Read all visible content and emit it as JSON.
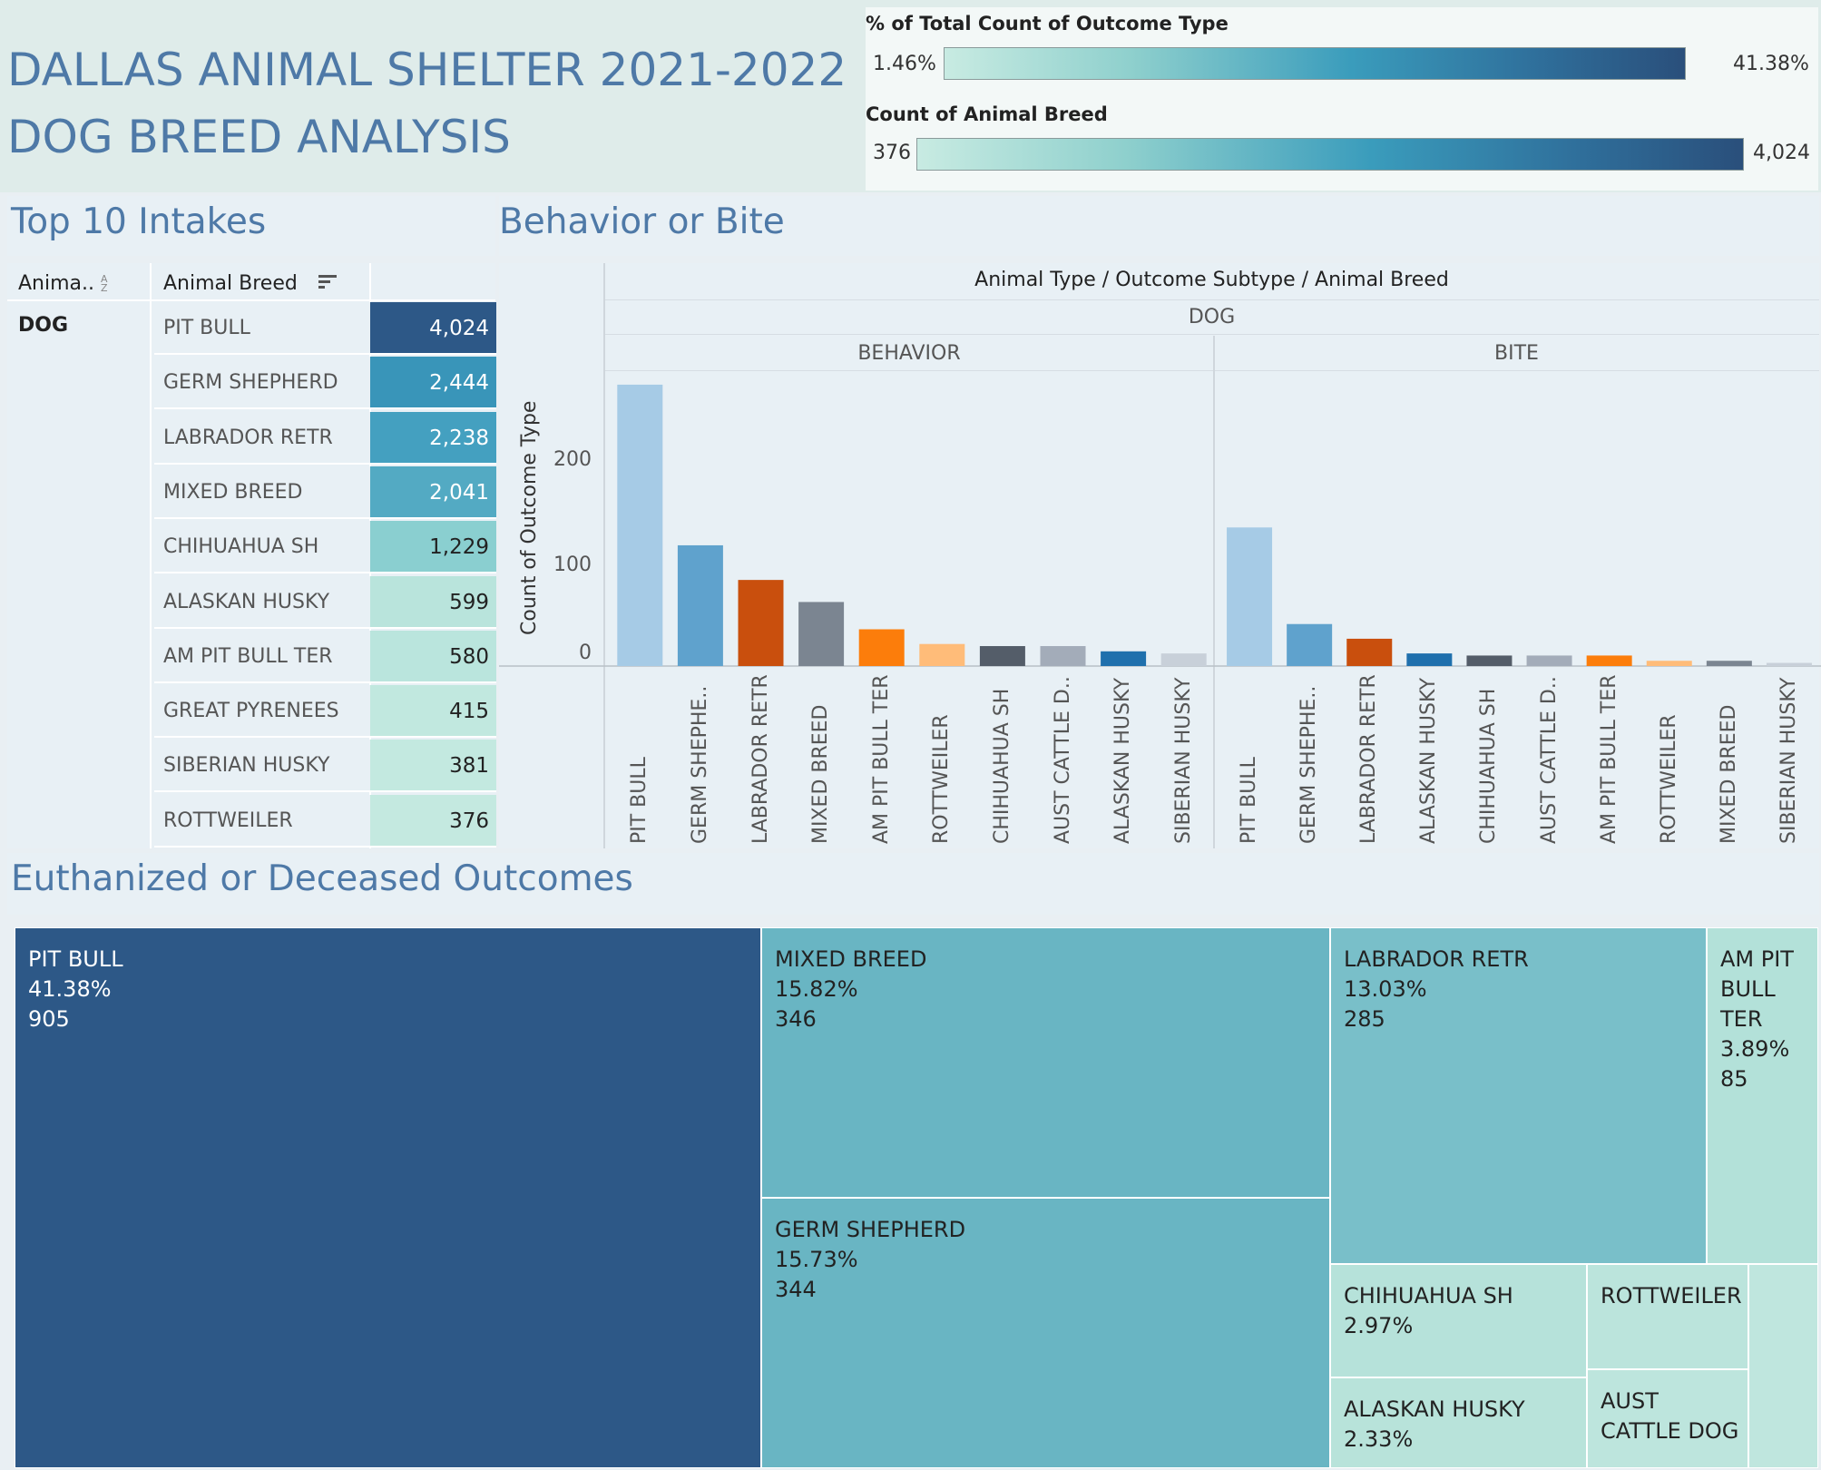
{
  "title": {
    "line1": "DALLAS ANIMAL SHELTER 2021-2022",
    "line2": "DOG BREED ANALYSIS"
  },
  "legends": {
    "pct": {
      "title": "% of Total Count of Outcome Type",
      "min": "1.46%",
      "max": "41.38%"
    },
    "count": {
      "title": "Count of Animal Breed",
      "min": "376",
      "max": "4,024"
    }
  },
  "intakes": {
    "title": "Top 10 Intakes",
    "col_animal": "Anima..",
    "col_breed": "Animal Breed",
    "animal_type": "DOG",
    "rows": [
      {
        "breed": "PIT BULL",
        "value": "4,024",
        "color": "#2d5887"
      },
      {
        "breed": "GERM SHEPHERD",
        "value": "2,444",
        "color": "#3995b9"
      },
      {
        "breed": "LABRADOR RETR",
        "value": "2,238",
        "color": "#44a0c0"
      },
      {
        "breed": "MIXED BREED",
        "value": "2,041",
        "color": "#53aac3"
      },
      {
        "breed": "CHIHUAHUA SH",
        "value": "1,229",
        "color": "#8acfd0"
      },
      {
        "breed": "ALASKAN HUSKY",
        "value": "599",
        "color": "#b9e4dc"
      },
      {
        "breed": "AM PIT BULL TER",
        "value": "580",
        "color": "#bae5dd"
      },
      {
        "breed": "GREAT PYRENEES",
        "value": "415",
        "color": "#c1e8df"
      },
      {
        "breed": "SIBERIAN HUSKY",
        "value": "381",
        "color": "#c3e9e0"
      },
      {
        "breed": "ROTTWEILER",
        "value": "376",
        "color": "#c4e9e0"
      }
    ]
  },
  "behavior": {
    "title": "Behavior or Bite",
    "header": "Animal Type  /  Outcome Subtype  /  Animal Breed",
    "animal_type": "DOG",
    "subtypes": [
      "BEHAVIOR",
      "BITE"
    ],
    "ylabel": "Count of Outcome Type",
    "ticks": [
      "0",
      "100",
      "200"
    ]
  },
  "chart_data": {
    "type": "bar",
    "title": "Behavior or Bite",
    "ylabel": "Count of Outcome Type",
    "ylim": [
      0,
      280
    ],
    "series": [
      {
        "name": "BEHAVIOR",
        "categories": [
          "PIT BULL",
          "GERM SHEPHE..",
          "LABRADOR RETR",
          "MIXED BREED",
          "AM PIT BULL TER",
          "ROTTWEILER",
          "CHIHUAHUA SH",
          "AUST CATTLE D..",
          "ALASKAN HUSKY",
          "SIBERIAN HUSKY"
        ],
        "values": [
          268,
          115,
          82,
          61,
          35,
          21,
          19,
          19,
          14,
          12
        ],
        "colors": [
          "#a6cbe6",
          "#5fa2cd",
          "#c94f0d",
          "#7b8591",
          "#fc7d0b",
          "#ffbc79",
          "#545d69",
          "#a3acb9",
          "#1f70ad",
          "#c8d0d9"
        ]
      },
      {
        "name": "BITE",
        "categories": [
          "PIT BULL",
          "GERM SHEPHE..",
          "LABRADOR RETR",
          "ALASKAN HUSKY",
          "CHIHUAHUA SH",
          "AUST CATTLE D..",
          "AM PIT BULL TER",
          "ROTTWEILER",
          "MIXED BREED",
          "SIBERIAN HUSKY"
        ],
        "values": [
          132,
          40,
          26,
          12,
          10,
          10,
          10,
          5,
          5,
          3
        ],
        "colors": [
          "#a6cbe6",
          "#5fa2cd",
          "#c94f0d",
          "#1f70ad",
          "#545d69",
          "#a3acb9",
          "#fc7d0b",
          "#ffbc79",
          "#7b8591",
          "#c8d0d9"
        ]
      }
    ]
  },
  "euthanized": {
    "title": "Euthanized or Deceased Outcomes",
    "items": [
      {
        "breed": "PIT BULL",
        "pct": "41.38%",
        "count": "905",
        "color": "#2d5887"
      },
      {
        "breed": "MIXED BREED",
        "pct": "15.82%",
        "count": "346",
        "color": "#69b5c3"
      },
      {
        "breed": "GERM SHEPHERD",
        "pct": "15.73%",
        "count": "344",
        "color": "#69b5c3"
      },
      {
        "breed": "LABRADOR RETR",
        "pct": "13.03%",
        "count": "285",
        "color": "#79bfc9"
      },
      {
        "breed": "AM PIT BULL TER",
        "breed_lines": [
          "AM PIT",
          "BULL",
          "TER"
        ],
        "pct": "3.89%",
        "count": "85",
        "color": "#b3e1d9"
      },
      {
        "breed": "CHIHUAHUA SH",
        "pct": "2.97%",
        "color": "#b6e2da"
      },
      {
        "breed": "ALASKAN HUSKY",
        "pct": "2.33%",
        "color": "#b8e3da"
      },
      {
        "breed": "ROTTWEILER",
        "color": "#bbe4dc"
      },
      {
        "breed": "AUST CATTLE DOG",
        "breed_lines": [
          "AUST",
          "CATTLE DOG"
        ],
        "color": "#bde5dd"
      },
      {
        "color": "#bfe6de"
      }
    ]
  }
}
